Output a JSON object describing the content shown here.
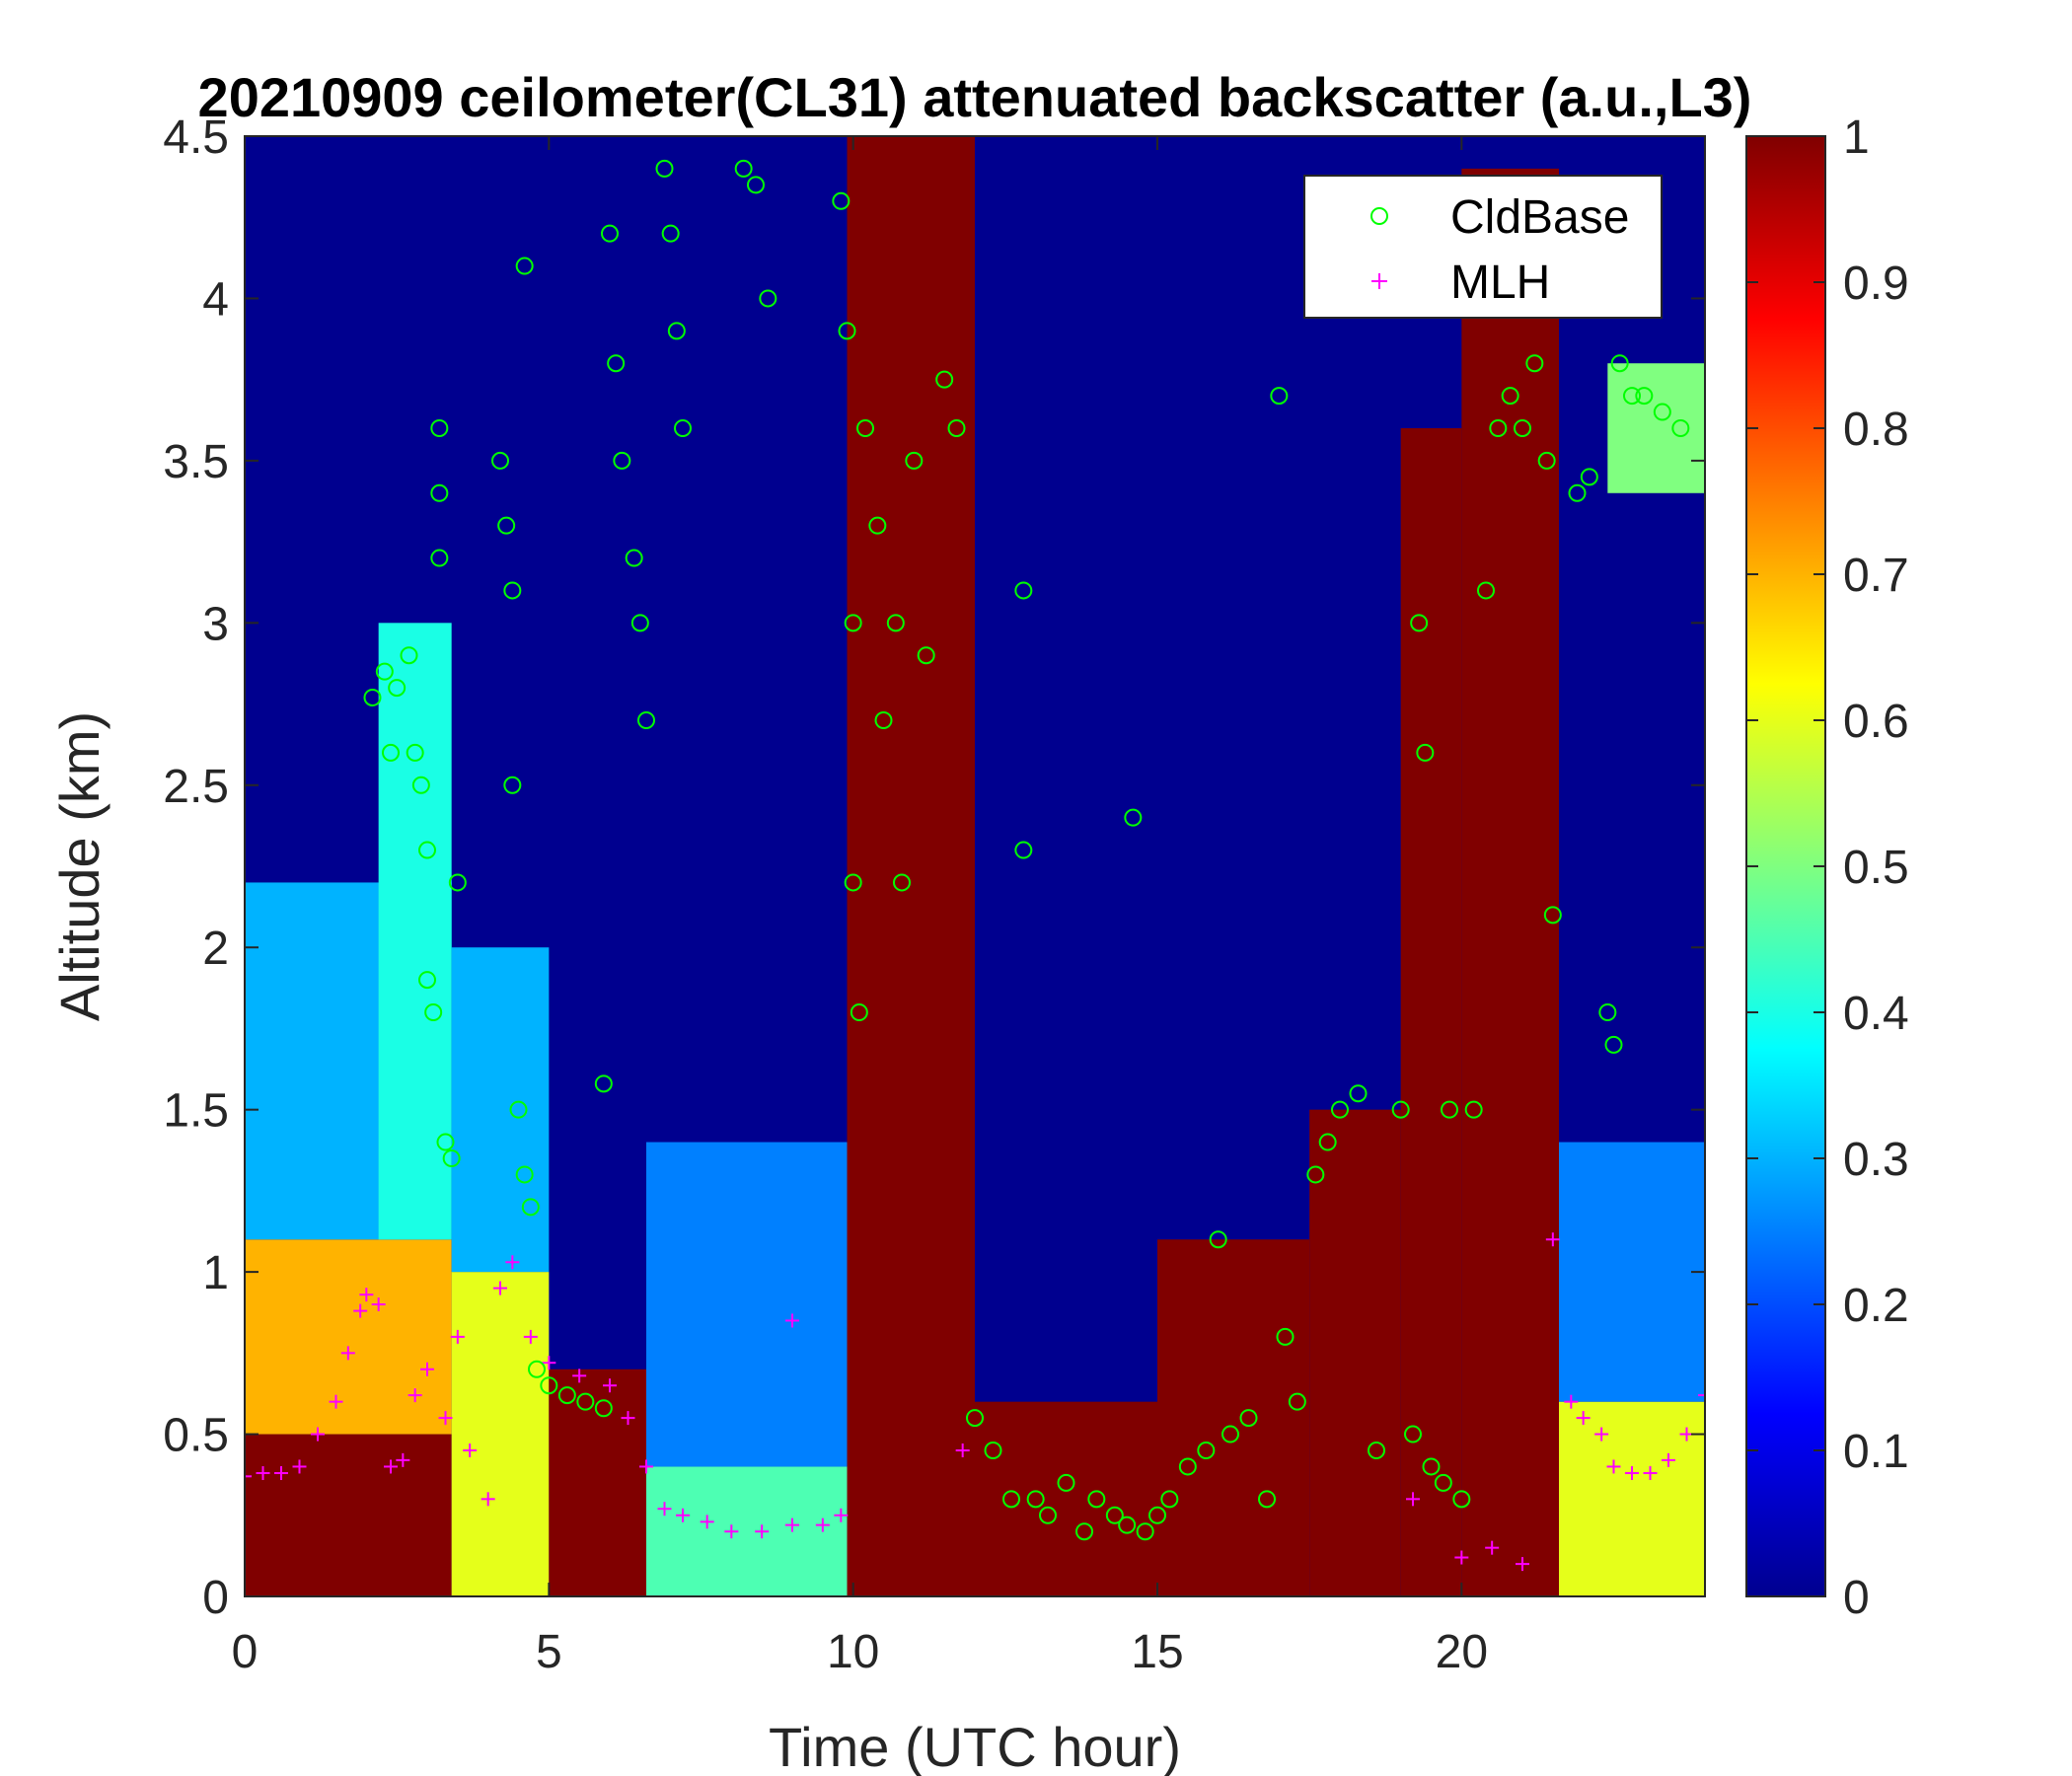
{
  "chart_data": {
    "type": "heatmap",
    "title": "20210909 ceilometer(CL31) attenuated backscatter (a.u.,L3)",
    "xlabel": "Time (UTC hour)",
    "ylabel": "Altitude (km)",
    "xlim": [
      0,
      24
    ],
    "ylim": [
      0,
      4.5
    ],
    "x_ticks": [
      0,
      5,
      10,
      15,
      20
    ],
    "x_tick_labels": [
      "0",
      "5",
      "10",
      "15",
      "20"
    ],
    "y_ticks": [
      0,
      0.5,
      1,
      1.5,
      2,
      2.5,
      3,
      3.5,
      4,
      4.5
    ],
    "y_tick_labels": [
      "0",
      "0.5",
      "1",
      "1.5",
      "2",
      "2.5",
      "3",
      "3.5",
      "4",
      "4.5"
    ],
    "colorbar": {
      "colormap": "jet",
      "limits": [
        0,
        1
      ],
      "ticks": [
        0,
        0.1,
        0.2,
        0.3,
        0.4,
        0.5,
        0.6,
        0.7,
        0.8,
        0.9,
        1
      ],
      "tick_labels": [
        "0",
        "0.1",
        "0.2",
        "0.3",
        "0.4",
        "0.5",
        "0.6",
        "0.7",
        "0.8",
        "0.9",
        "1"
      ]
    },
    "legend": {
      "placement": "top-right",
      "entries": [
        {
          "name": "CldBase",
          "marker": "circle",
          "color": "#00ff00"
        },
        {
          "name": "MLH",
          "marker": "plus",
          "color": "#ff00ff"
        }
      ]
    },
    "backscatter_regions": [
      {
        "x": [
          0,
          3.4
        ],
        "y": [
          0,
          0.5
        ],
        "value": 1.0
      },
      {
        "x": [
          0,
          3.4
        ],
        "y": [
          0.5,
          1.1
        ],
        "value": 0.7
      },
      {
        "x": [
          0,
          3.4
        ],
        "y": [
          1.1,
          2.2
        ],
        "value": 0.3
      },
      {
        "x": [
          2.2,
          3.4
        ],
        "y": [
          1.1,
          3.0
        ],
        "value": 0.4
      },
      {
        "x": [
          3.4,
          5.0
        ],
        "y": [
          0,
          1.0
        ],
        "value": 0.6
      },
      {
        "x": [
          3.4,
          5.0
        ],
        "y": [
          1.0,
          2.0
        ],
        "value": 0.3
      },
      {
        "x": [
          5.0,
          6.6
        ],
        "y": [
          0,
          0.7
        ],
        "value": 1.0
      },
      {
        "x": [
          6.6,
          9.9
        ],
        "y": [
          0,
          0.4
        ],
        "value": 0.45
      },
      {
        "x": [
          6.6,
          9.9
        ],
        "y": [
          0.4,
          1.4
        ],
        "value": 0.25
      },
      {
        "x": [
          9.9,
          12.0
        ],
        "y": [
          0,
          4.5
        ],
        "value": 1.0
      },
      {
        "x": [
          12.0,
          15.0
        ],
        "y": [
          0,
          0.6
        ],
        "value": 1.0
      },
      {
        "x": [
          15.0,
          17.5
        ],
        "y": [
          0,
          1.1
        ],
        "value": 1.0
      },
      {
        "x": [
          17.5,
          19.0
        ],
        "y": [
          0,
          1.5
        ],
        "value": 1.0
      },
      {
        "x": [
          19.0,
          20.0
        ],
        "y": [
          0,
          3.6
        ],
        "value": 1.0
      },
      {
        "x": [
          20.0,
          21.6
        ],
        "y": [
          0,
          4.4
        ],
        "value": 1.0
      },
      {
        "x": [
          21.6,
          24.0
        ],
        "y": [
          0,
          0.6
        ],
        "value": 0.6
      },
      {
        "x": [
          21.6,
          24.0
        ],
        "y": [
          0.6,
          1.4
        ],
        "value": 0.25
      },
      {
        "x": [
          22.4,
          24.0
        ],
        "y": [
          3.4,
          3.8
        ],
        "value": 0.5
      }
    ],
    "series": [
      {
        "name": "CldBase",
        "points": [
          [
            2.1,
            2.77
          ],
          [
            2.3,
            2.85
          ],
          [
            2.4,
            2.6
          ],
          [
            2.5,
            2.8
          ],
          [
            2.7,
            2.9
          ],
          [
            2.8,
            2.6
          ],
          [
            2.9,
            2.5
          ],
          [
            3.0,
            2.3
          ],
          [
            3.0,
            1.9
          ],
          [
            3.1,
            1.8
          ],
          [
            3.2,
            3.6
          ],
          [
            3.2,
            3.4
          ],
          [
            3.2,
            3.2
          ],
          [
            3.3,
            1.4
          ],
          [
            3.4,
            1.35
          ],
          [
            3.5,
            2.2
          ],
          [
            4.2,
            3.5
          ],
          [
            4.3,
            3.3
          ],
          [
            4.4,
            3.1
          ],
          [
            4.4,
            2.5
          ],
          [
            4.5,
            1.5
          ],
          [
            4.6,
            1.3
          ],
          [
            4.7,
            1.2
          ],
          [
            4.6,
            4.1
          ],
          [
            4.8,
            0.7
          ],
          [
            5.0,
            0.65
          ],
          [
            5.3,
            0.62
          ],
          [
            5.6,
            0.6
          ],
          [
            5.9,
            0.58
          ],
          [
            5.9,
            1.58
          ],
          [
            6.0,
            4.2
          ],
          [
            6.1,
            3.8
          ],
          [
            6.2,
            3.5
          ],
          [
            6.4,
            3.2
          ],
          [
            6.5,
            3.0
          ],
          [
            6.6,
            2.7
          ],
          [
            6.9,
            4.4
          ],
          [
            7.0,
            4.2
          ],
          [
            7.1,
            3.9
          ],
          [
            7.2,
            3.6
          ],
          [
            8.2,
            4.4
          ],
          [
            8.4,
            4.35
          ],
          [
            8.6,
            4.0
          ],
          [
            9.8,
            4.3
          ],
          [
            9.9,
            3.9
          ],
          [
            10.0,
            3.0
          ],
          [
            10.0,
            2.2
          ],
          [
            10.1,
            1.8
          ],
          [
            10.2,
            3.6
          ],
          [
            10.4,
            3.3
          ],
          [
            10.5,
            2.7
          ],
          [
            10.7,
            3.0
          ],
          [
            10.8,
            2.2
          ],
          [
            11.0,
            3.5
          ],
          [
            11.2,
            2.9
          ],
          [
            11.5,
            3.75
          ],
          [
            11.7,
            3.6
          ],
          [
            12.0,
            0.55
          ],
          [
            12.3,
            0.45
          ],
          [
            12.6,
            0.3
          ],
          [
            12.8,
            3.1
          ],
          [
            12.8,
            2.3
          ],
          [
            13.0,
            0.3
          ],
          [
            13.2,
            0.25
          ],
          [
            13.5,
            0.35
          ],
          [
            13.8,
            0.2
          ],
          [
            14.0,
            0.3
          ],
          [
            14.3,
            0.25
          ],
          [
            14.5,
            0.22
          ],
          [
            14.6,
            2.4
          ],
          [
            14.8,
            0.2
          ],
          [
            15.0,
            0.25
          ],
          [
            15.2,
            0.3
          ],
          [
            15.5,
            0.4
          ],
          [
            15.8,
            0.45
          ],
          [
            16.0,
            1.1
          ],
          [
            16.2,
            0.5
          ],
          [
            16.5,
            0.55
          ],
          [
            16.8,
            0.3
          ],
          [
            17.0,
            3.7
          ],
          [
            17.1,
            0.8
          ],
          [
            17.3,
            0.6
          ],
          [
            17.6,
            1.3
          ],
          [
            17.8,
            1.4
          ],
          [
            18.0,
            1.5
          ],
          [
            18.3,
            1.55
          ],
          [
            18.6,
            0.45
          ],
          [
            19.0,
            1.5
          ],
          [
            19.2,
            0.5
          ],
          [
            19.3,
            3.0
          ],
          [
            19.4,
            2.6
          ],
          [
            19.5,
            0.4
          ],
          [
            19.7,
            0.35
          ],
          [
            19.8,
            1.5
          ],
          [
            20.0,
            0.3
          ],
          [
            20.2,
            1.5
          ],
          [
            20.4,
            3.1
          ],
          [
            20.6,
            3.6
          ],
          [
            20.8,
            3.7
          ],
          [
            21.0,
            3.6
          ],
          [
            21.2,
            3.8
          ],
          [
            21.4,
            3.5
          ],
          [
            21.5,
            2.1
          ],
          [
            21.9,
            3.4
          ],
          [
            22.1,
            3.45
          ],
          [
            22.4,
            1.8
          ],
          [
            22.5,
            1.7
          ],
          [
            22.6,
            3.8
          ],
          [
            22.8,
            3.7
          ],
          [
            23.0,
            3.7
          ],
          [
            23.3,
            3.65
          ],
          [
            23.6,
            3.6
          ]
        ]
      },
      {
        "name": "MLH",
        "points": [
          [
            0.0,
            0.37
          ],
          [
            0.3,
            0.38
          ],
          [
            0.6,
            0.38
          ],
          [
            0.9,
            0.4
          ],
          [
            1.2,
            0.5
          ],
          [
            1.5,
            0.6
          ],
          [
            1.7,
            0.75
          ],
          [
            1.9,
            0.88
          ],
          [
            2.0,
            0.93
          ],
          [
            2.2,
            0.9
          ],
          [
            2.4,
            0.4
          ],
          [
            2.6,
            0.42
          ],
          [
            2.8,
            0.62
          ],
          [
            3.0,
            0.7
          ],
          [
            3.3,
            0.55
          ],
          [
            3.5,
            0.8
          ],
          [
            3.7,
            0.45
          ],
          [
            4.0,
            0.3
          ],
          [
            4.2,
            0.95
          ],
          [
            4.4,
            1.03
          ],
          [
            4.7,
            0.8
          ],
          [
            5.0,
            0.72
          ],
          [
            5.5,
            0.68
          ],
          [
            6.0,
            0.65
          ],
          [
            6.3,
            0.55
          ],
          [
            6.6,
            0.4
          ],
          [
            6.9,
            0.27
          ],
          [
            7.2,
            0.25
          ],
          [
            7.6,
            0.23
          ],
          [
            8.0,
            0.2
          ],
          [
            8.5,
            0.2
          ],
          [
            9.0,
            0.22
          ],
          [
            9.5,
            0.22
          ],
          [
            9.0,
            0.85
          ],
          [
            9.8,
            0.25
          ],
          [
            11.8,
            0.45
          ],
          [
            19.2,
            0.3
          ],
          [
            20.0,
            0.12
          ],
          [
            20.5,
            0.15
          ],
          [
            21.0,
            0.1
          ],
          [
            21.5,
            1.1
          ],
          [
            21.8,
            0.6
          ],
          [
            22.0,
            0.55
          ],
          [
            22.3,
            0.5
          ],
          [
            22.5,
            0.4
          ],
          [
            22.8,
            0.38
          ],
          [
            23.1,
            0.38
          ],
          [
            23.4,
            0.42
          ],
          [
            23.7,
            0.5
          ],
          [
            24.0,
            0.62
          ]
        ]
      }
    ]
  }
}
